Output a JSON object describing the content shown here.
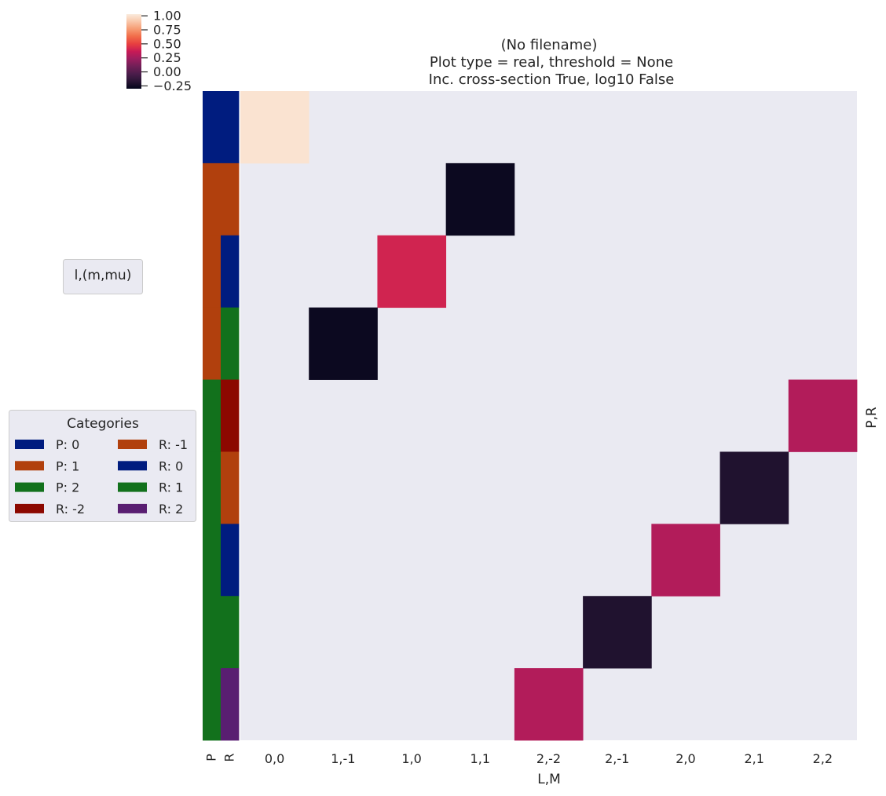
{
  "chart_data": {
    "type": "heatmap",
    "title_lines": [
      "(No filename)",
      "Plot type = real, threshold = None",
      "Inc. cross-section True, log10 False"
    ],
    "xlabel": "L,M",
    "ylabel_right": "P,R",
    "x_categories": [
      "0,0",
      "1,-1",
      "1,0",
      "1,1",
      "2,-2",
      "2,-1",
      "2,0",
      "2,1",
      "2,2"
    ],
    "row_annotation_labels": [
      "P",
      "R"
    ],
    "rows": [
      {
        "P": "0",
        "R": "0"
      },
      {
        "P": "1",
        "R": "-1"
      },
      {
        "P": "1",
        "R": "0"
      },
      {
        "P": "1",
        "R": "1"
      },
      {
        "P": "2",
        "R": "-2"
      },
      {
        "P": "2",
        "R": "-1"
      },
      {
        "P": "2",
        "R": "0"
      },
      {
        "P": "2",
        "R": "1"
      },
      {
        "P": "2",
        "R": "2"
      }
    ],
    "cells": [
      {
        "row": 0,
        "col": 0,
        "value": 1.0
      },
      {
        "row": 1,
        "col": 3,
        "value": -0.27
      },
      {
        "row": 2,
        "col": 2,
        "value": 0.4
      },
      {
        "row": 3,
        "col": 1,
        "value": -0.27
      },
      {
        "row": 4,
        "col": 8,
        "value": 0.3
      },
      {
        "row": 5,
        "col": 7,
        "value": -0.2
      },
      {
        "row": 6,
        "col": 6,
        "value": 0.3
      },
      {
        "row": 7,
        "col": 5,
        "value": -0.2
      },
      {
        "row": 8,
        "col": 4,
        "value": 0.3
      }
    ],
    "missing_color": "#EAEAF2",
    "colorbar": {
      "range": [
        -0.3,
        1.03
      ],
      "ticks": [
        "1.00",
        "0.75",
        "0.50",
        "0.25",
        "0.00",
        "−0.25"
      ],
      "tick_values": [
        1.0,
        0.75,
        0.5,
        0.25,
        0.0,
        -0.25
      ]
    },
    "legend_group_box": "l,(m,mu)",
    "legend": {
      "title": "Categories",
      "entries": [
        {
          "label": "P: 0",
          "color": "#001C7F"
        },
        {
          "label": "P: 1",
          "color": "#B1400D"
        },
        {
          "label": "P: 2",
          "color": "#12711C"
        },
        {
          "label": "R: -2",
          "color": "#8C0800"
        },
        {
          "label": "R: -1",
          "color": "#B1400D"
        },
        {
          "label": "R: 0",
          "color": "#001C7F"
        },
        {
          "label": "R: 1",
          "color": "#12711C"
        },
        {
          "label": "R: 2",
          "color": "#591E71"
        }
      ]
    },
    "category_colors": {
      "P": {
        "0": "#001C7F",
        "1": "#B1400D",
        "2": "#12711C"
      },
      "R": {
        "-2": "#8C0800",
        "-1": "#B1400D",
        "0": "#001C7F",
        "1": "#12711C",
        "2": "#591E71"
      }
    },
    "grid": false
  }
}
